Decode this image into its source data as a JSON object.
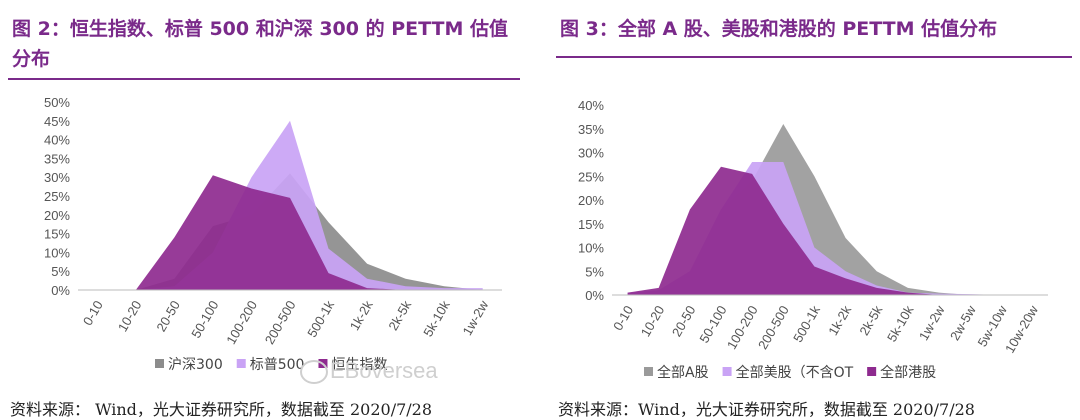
{
  "chart_data": [
    {
      "type": "area",
      "title": "图 2：恒生指数、标普 500 和沪深 300 的 PETTM 估值分布",
      "categories": [
        "0-10",
        "10-20",
        "20-50",
        "50-100",
        "100-200",
        "200-500",
        "500-1k",
        "1k-2k",
        "2k-5k",
        "5k-10k",
        "1w-2w"
      ],
      "ylim": [
        0,
        0.5
      ],
      "yticks": [
        "0%",
        "5%",
        "10%",
        "15%",
        "20%",
        "25%",
        "30%",
        "35%",
        "40%",
        "45%",
        "50%"
      ],
      "legend_position": "bottom",
      "series": [
        {
          "name": "沪深300",
          "color": "#8c8c8c",
          "values": [
            0,
            0,
            0.03,
            0.17,
            0.2,
            0.31,
            0.18,
            0.07,
            0.03,
            0.01,
            0
          ]
        },
        {
          "name": "标普500",
          "color": "#c9a3f5",
          "values": [
            0,
            0,
            0.01,
            0.1,
            0.3,
            0.45,
            0.11,
            0.03,
            0.01,
            0.005,
            0.005
          ]
        },
        {
          "name": "恒生指数",
          "color": "#8e2a8f",
          "values": [
            0,
            0,
            0.14,
            0.305,
            0.27,
            0.245,
            0.045,
            0.005,
            0,
            0,
            0
          ]
        }
      ],
      "source": "资料来源： Wind，光大证券研究所，数据截至 2020/7/28"
    },
    {
      "type": "area",
      "title": "图 3：全部 A 股、美股和港股的 PETTM 估值分布",
      "categories": [
        "0-10",
        "10-20",
        "20-50",
        "50-100",
        "100-200",
        "200-500",
        "500-1k",
        "1k-2k",
        "2k-5k",
        "5k-10k",
        "1w-2w",
        "2w-5w",
        "5w-10w",
        "10w-20w"
      ],
      "ylim": [
        0,
        0.4
      ],
      "yticks": [
        "0%",
        "5%",
        "10%",
        "15%",
        "20%",
        "25%",
        "30%",
        "35%",
        "40%"
      ],
      "legend_position": "bottom",
      "series": [
        {
          "name": "全部A股",
          "color": "#9a9a9a",
          "values": [
            0,
            0.01,
            0.05,
            0.18,
            0.24,
            0.36,
            0.25,
            0.12,
            0.05,
            0.015,
            0.005,
            0,
            0,
            0
          ]
        },
        {
          "name": "全部美股（不含OT",
          "color": "#c9a3f5",
          "values": [
            0.005,
            0.01,
            0.05,
            0.18,
            0.28,
            0.28,
            0.1,
            0.05,
            0.02,
            0.005,
            0.003,
            0.002,
            0,
            0
          ]
        },
        {
          "name": "全部港股",
          "color": "#8e2a8f",
          "values": [
            0.005,
            0.015,
            0.18,
            0.27,
            0.255,
            0.15,
            0.06,
            0.035,
            0.015,
            0.005,
            0,
            0,
            0,
            0
          ]
        }
      ],
      "source": "资料来源：Wind，光大证券研究所，数据截至 2020/7/28"
    }
  ],
  "watermark": "EBoversea"
}
